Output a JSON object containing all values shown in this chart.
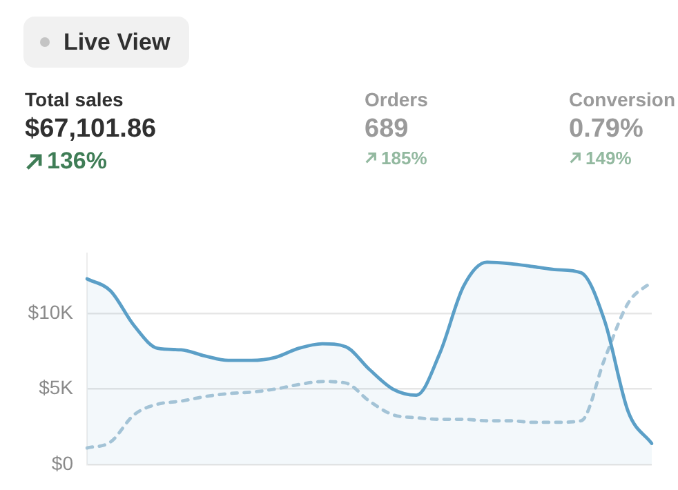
{
  "chart_data": {
    "type": "line",
    "annotations": [
      "Live View",
      "Total sales",
      "$67,101.86",
      "136%",
      "Orders",
      "689",
      "185%",
      "Conversion",
      "0.79%",
      "149%"
    ],
    "categories": [
      null,
      null,
      null,
      null,
      null,
      null,
      null,
      null,
      null,
      null,
      null,
      null,
      null,
      null,
      null,
      null,
      null,
      null,
      null,
      null,
      null,
      null,
      null,
      null,
      null
    ],
    "series": [
      {
        "type": "area",
        "color": "#5b9fc7",
        "line_style": "solid",
        "values": [
          12300,
          11500,
          9200,
          7700,
          7600,
          7200,
          6900,
          6900,
          7100,
          7700,
          8000,
          7800,
          6300,
          5000,
          4600,
          7400,
          11800,
          13400,
          13300,
          13100,
          12900,
          12700,
          9500,
          3500,
          1400
        ]
      },
      {
        "color": "#a9c6d8",
        "line_style": "dashed",
        "values": [
          1100,
          1500,
          3300,
          4000,
          4200,
          4500,
          4700,
          4800,
          5000,
          5300,
          5500,
          5400,
          4200,
          3300,
          3100,
          3000,
          3000,
          2900,
          2900,
          2800,
          2800,
          2900,
          7000,
          10700,
          12100
        ]
      }
    ],
    "ylim": [
      0,
      14000
    ],
    "yticks": [
      {
        "value": 0,
        "label": "$0"
      },
      {
        "value": 5000,
        "label": "$5K"
      },
      {
        "value": 10000,
        "label": "$10K"
      }
    ],
    "grid": "y",
    "tick_labels": "y",
    "legend": false,
    "marker": "none"
  }
}
